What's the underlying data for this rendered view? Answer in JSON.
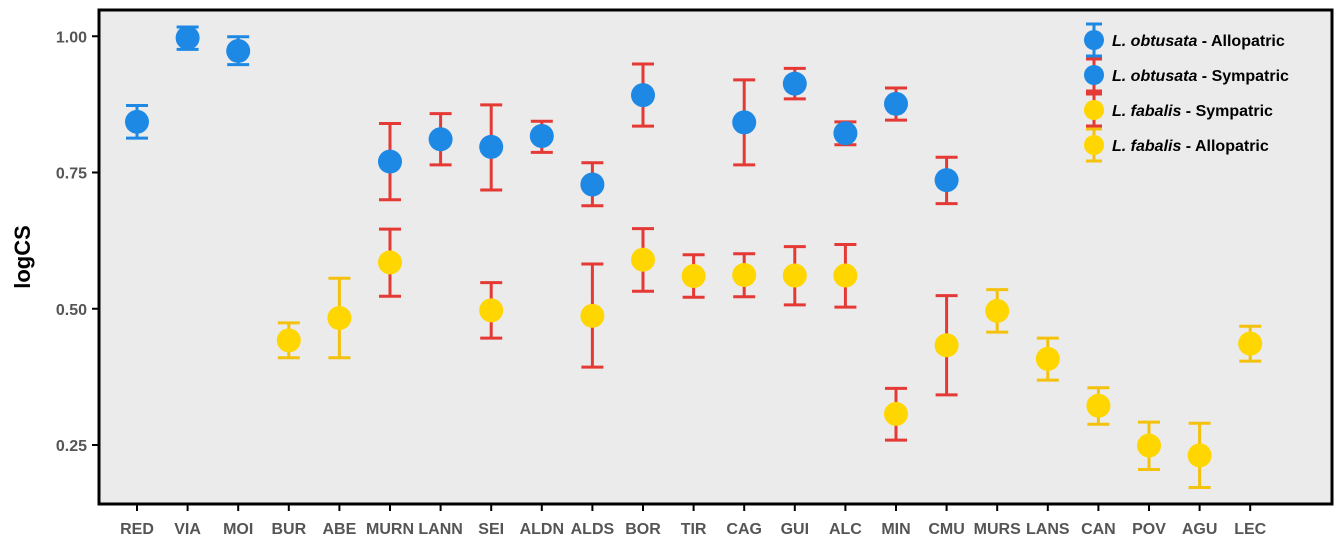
{
  "chart_data": {
    "type": "scatter",
    "ylabel": "logCS",
    "xlabel": "",
    "title": "",
    "ylim": [
      0.135,
      1.06
    ],
    "yticks": [
      0.25,
      0.5,
      0.75,
      1.0
    ],
    "ytick_labels": [
      "0.25",
      "0.50",
      "0.75",
      "1.00"
    ],
    "grid": false,
    "legend_position": "top-right",
    "categories": [
      "RED",
      "VIA",
      "MOI",
      "BUR",
      "ABE",
      "MURN",
      "LANN",
      "SEI",
      "ALDN",
      "ALDS",
      "BOR",
      "TIR",
      "CAG",
      "GUI",
      "ALC",
      "MIN",
      "CMU",
      "MURS",
      "LANS",
      "CAN",
      "POV",
      "AGU",
      "LEC"
    ],
    "colors": {
      "background": "#ebebeb",
      "obtusata_point": "#1e88e5",
      "fabalis_point": "#ffd600",
      "allopatric_obtusata_bar": "#1e88e5",
      "sympatric_bar": "#e53935",
      "allopatric_fabalis_bar": "#f4c20d"
    },
    "series": [
      {
        "name_italic": "L. obtusata",
        "name_rest": " - Allopatric",
        "point_color": "#1e88e5",
        "error_color": "#1e88e5",
        "points": [
          {
            "x": "RED",
            "y": 0.843,
            "lo": 0.813,
            "hi": 0.873
          },
          {
            "x": "VIA",
            "y": 0.997,
            "lo": 0.976,
            "hi": 1.017
          },
          {
            "x": "MOI",
            "y": 0.973,
            "lo": 0.948,
            "hi": 0.999
          }
        ]
      },
      {
        "name_italic": "L. obtusata",
        "name_rest": " - Sympatric",
        "point_color": "#1e88e5",
        "error_color": "#e53935",
        "points": [
          {
            "x": "MURN",
            "y": 0.77,
            "lo": 0.7,
            "hi": 0.84
          },
          {
            "x": "LANN",
            "y": 0.811,
            "lo": 0.764,
            "hi": 0.858
          },
          {
            "x": "SEI",
            "y": 0.797,
            "lo": 0.718,
            "hi": 0.874
          },
          {
            "x": "ALDN",
            "y": 0.817,
            "lo": 0.787,
            "hi": 0.844
          },
          {
            "x": "ALDS",
            "y": 0.728,
            "lo": 0.689,
            "hi": 0.768
          },
          {
            "x": "BOR",
            "y": 0.892,
            "lo": 0.835,
            "hi": 0.949
          },
          {
            "x": "CAG",
            "y": 0.842,
            "lo": 0.764,
            "hi": 0.92
          },
          {
            "x": "GUI",
            "y": 0.913,
            "lo": 0.885,
            "hi": 0.941
          },
          {
            "x": "ALC",
            "y": 0.822,
            "lo": 0.801,
            "hi": 0.843
          },
          {
            "x": "MIN",
            "y": 0.876,
            "lo": 0.846,
            "hi": 0.905
          },
          {
            "x": "CMU",
            "y": 0.736,
            "lo": 0.693,
            "hi": 0.778
          }
        ]
      },
      {
        "name_italic": "L. fabalis",
        "name_rest": " - Sympatric",
        "point_color": "#ffd600",
        "error_color": "#e53935",
        "points": [
          {
            "x": "MURN",
            "y": 0.585,
            "lo": 0.523,
            "hi": 0.646
          },
          {
            "x": "SEI",
            "y": 0.497,
            "lo": 0.446,
            "hi": 0.548
          },
          {
            "x": "ALDS",
            "y": 0.487,
            "lo": 0.393,
            "hi": 0.582
          },
          {
            "x": "BOR",
            "y": 0.59,
            "lo": 0.532,
            "hi": 0.647
          },
          {
            "x": "TIR",
            "y": 0.56,
            "lo": 0.521,
            "hi": 0.599
          },
          {
            "x": "CAG",
            "y": 0.562,
            "lo": 0.522,
            "hi": 0.601
          },
          {
            "x": "GUI",
            "y": 0.561,
            "lo": 0.507,
            "hi": 0.614
          },
          {
            "x": "ALC",
            "y": 0.561,
            "lo": 0.503,
            "hi": 0.618
          },
          {
            "x": "MIN",
            "y": 0.307,
            "lo": 0.259,
            "hi": 0.354
          },
          {
            "x": "CMU",
            "y": 0.433,
            "lo": 0.342,
            "hi": 0.524
          }
        ]
      },
      {
        "name_italic": "L. fabalis",
        "name_rest": " - Allopatric",
        "point_color": "#ffd600",
        "error_color": "#f4c20d",
        "points": [
          {
            "x": "BUR",
            "y": 0.442,
            "lo": 0.41,
            "hi": 0.474
          },
          {
            "x": "ABE",
            "y": 0.483,
            "lo": 0.41,
            "hi": 0.556
          },
          {
            "x": "MURS",
            "y": 0.496,
            "lo": 0.457,
            "hi": 0.535
          },
          {
            "x": "LANS",
            "y": 0.408,
            "lo": 0.369,
            "hi": 0.446
          },
          {
            "x": "CAN",
            "y": 0.322,
            "lo": 0.288,
            "hi": 0.355
          },
          {
            "x": "POV",
            "y": 0.249,
            "lo": 0.205,
            "hi": 0.292
          },
          {
            "x": "AGU",
            "y": 0.231,
            "lo": 0.172,
            "hi": 0.29
          },
          {
            "x": "LEC",
            "y": 0.436,
            "lo": 0.404,
            "hi": 0.468
          }
        ]
      }
    ]
  }
}
